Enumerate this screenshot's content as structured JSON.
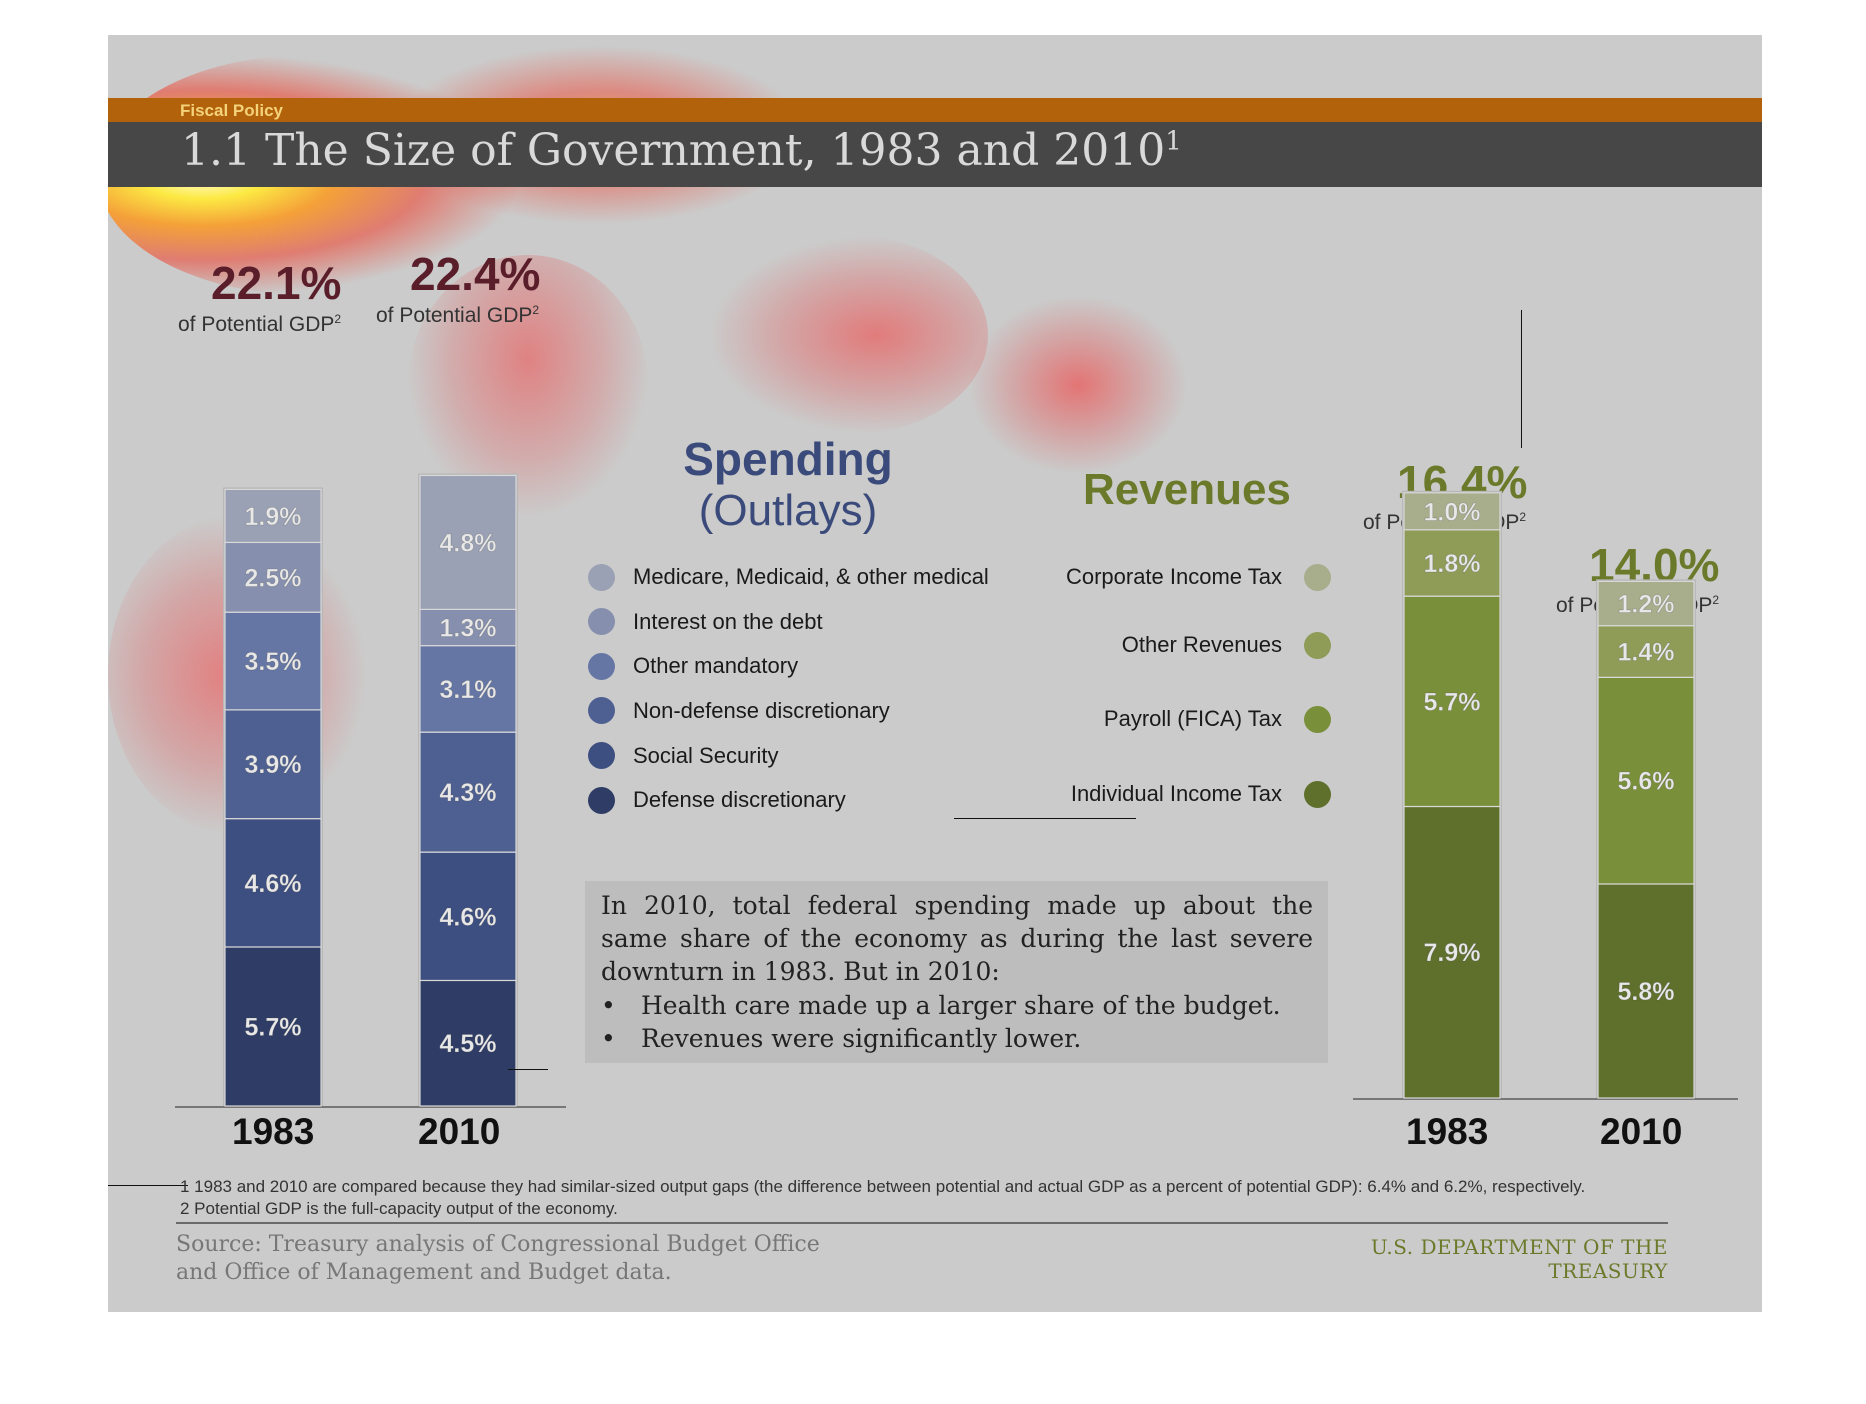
{
  "header": {
    "section": "Fiscal Policy",
    "title_number": "1.1",
    "title": "The Size of Government, 1983 and 2010",
    "title_sup": "1"
  },
  "spending": {
    "heading_line1": "Spending",
    "heading_line2": "(Outlays)",
    "total_1983": "22.1%",
    "total_2010": "22.4%",
    "total_sub": "of Potential GDP",
    "total_sub_sup": "2"
  },
  "revenues": {
    "heading": "Revenues",
    "total_1983": "16.4%",
    "total_2010": "14.0%",
    "total_sub": "of Potential GDP",
    "total_sub_sup": "2"
  },
  "legend_spending": [
    {
      "label": "Medicare, Medicaid, & other medical",
      "color": "#9aa1b4"
    },
    {
      "label": "Interest on the debt",
      "color": "#8690ae"
    },
    {
      "label": "Other mandatory",
      "color": "#6576a4"
    },
    {
      "label": "Non-defense discretionary",
      "color": "#4e6092"
    },
    {
      "label": "Social Security",
      "color": "#3d4e80"
    },
    {
      "label": "Defense discretionary",
      "color": "#2f3d66"
    }
  ],
  "legend_revenues": [
    {
      "label": "Corporate Income Tax",
      "color": "#a8ae8c"
    },
    {
      "label": "Other Revenues",
      "color": "#8f9c58"
    },
    {
      "label": "Payroll (FICA) Tax",
      "color": "#7a8f3a"
    },
    {
      "label": "Individual Income Tax",
      "color": "#5f6f2c"
    }
  ],
  "note": {
    "paragraph": "In 2010, total federal spending made up about the same share of the economy as during the last severe downturn in 1983. But in 2010:",
    "bullet_char": "•",
    "bullets": [
      "Health care made up a larger share of the budget.",
      "Revenues were significantly lower."
    ]
  },
  "footnotes": {
    "f1": "1 1983 and 2010 are compared because they had similar-sized output gaps (the difference between potential and actual GDP as a percent of potential GDP): 6.4% and 6.2%, respectively.",
    "f2": "2 Potential GDP is the full-capacity output of the economy."
  },
  "footer": {
    "source_line1": "Source: Treasury analysis of Congressional Budget Office",
    "source_line2": "and Office of Management and Budget data.",
    "treasury": "U.S. DEPARTMENT OF THE TREASURY"
  },
  "chart_data": [
    {
      "type": "bar",
      "stacked": true,
      "title": "Spending (Outlays)",
      "unit": "% of Potential GDP",
      "categories": [
        "1983",
        "2010"
      ],
      "totals": [
        22.1,
        22.4
      ],
      "series": [
        {
          "name": "Defense discretionary",
          "values": [
            5.7,
            4.5
          ],
          "color": "#2f3d66"
        },
        {
          "name": "Social Security",
          "values": [
            4.6,
            4.6
          ],
          "color": "#3d4e80"
        },
        {
          "name": "Non-defense discretionary",
          "values": [
            3.9,
            4.3
          ],
          "color": "#4e6092"
        },
        {
          "name": "Other mandatory",
          "values": [
            3.5,
            3.1
          ],
          "color": "#6576a4"
        },
        {
          "name": "Interest on the debt",
          "values": [
            2.5,
            1.3
          ],
          "color": "#8690ae"
        },
        {
          "name": "Medicare, Medicaid, & other medical",
          "values": [
            1.9,
            4.8
          ],
          "color": "#9aa1b4"
        }
      ],
      "value_labels": [
        [
          "5.7%",
          "4.5%"
        ],
        [
          "4.6%",
          "4.6%"
        ],
        [
          "3.9%",
          "4.3%"
        ],
        [
          "3.5%",
          "3.1%"
        ],
        [
          "2.5%",
          "1.3%"
        ],
        [
          "1.9%",
          "4.8%"
        ]
      ]
    },
    {
      "type": "bar",
      "stacked": true,
      "title": "Revenues",
      "unit": "% of Potential GDP",
      "categories": [
        "1983",
        "2010"
      ],
      "totals": [
        16.4,
        14.0
      ],
      "series": [
        {
          "name": "Individual Income Tax",
          "values": [
            7.9,
            5.8
          ],
          "color": "#5f6f2c"
        },
        {
          "name": "Payroll (FICA) Tax",
          "values": [
            5.7,
            5.6
          ],
          "color": "#7a8f3a"
        },
        {
          "name": "Other Revenues",
          "values": [
            1.8,
            1.4
          ],
          "color": "#8f9c58"
        },
        {
          "name": "Corporate Income Tax",
          "values": [
            1.0,
            1.2
          ],
          "color": "#a8ae8c"
        }
      ],
      "value_labels": [
        [
          "7.9%",
          "5.8%"
        ],
        [
          "5.7%",
          "5.6%"
        ],
        [
          "1.8%",
          "1.4%"
        ],
        [
          "1.0%",
          "1.2%"
        ]
      ]
    }
  ]
}
